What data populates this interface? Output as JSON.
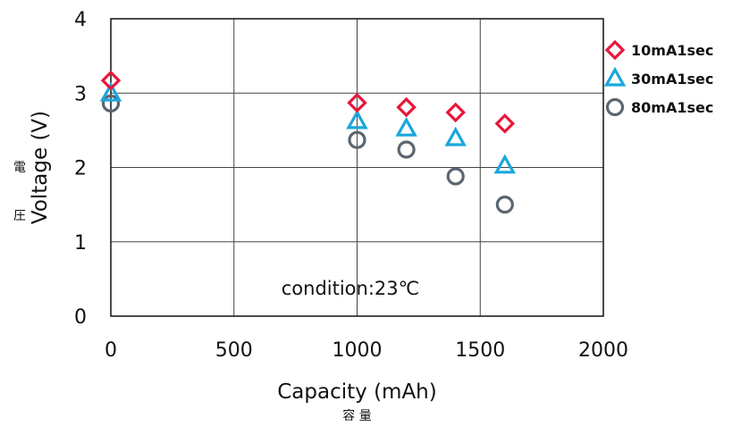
{
  "chart_data": {
    "type": "scatter",
    "title": "",
    "xlabel": "Capacity (mAh)",
    "xlabel_jp": "容 量",
    "ylabel": "Voltage (V)",
    "ylabel_jp": [
      "電",
      "圧"
    ],
    "xlim": [
      0,
      2000
    ],
    "ylim": [
      0,
      4
    ],
    "xticks": [
      "0",
      "500",
      "1000",
      "1500",
      "2000"
    ],
    "yticks": [
      "0",
      "1",
      "2",
      "3",
      "4"
    ],
    "grid": true,
    "legend_position": "right",
    "annotation": "condition:23℃",
    "series": [
      {
        "name": "10mA1sec",
        "marker": "diamond",
        "color": "#e8173c",
        "x": [
          0,
          1000,
          1200,
          1400,
          1600
        ],
        "y": [
          3.17,
          2.87,
          2.81,
          2.74,
          2.59
        ]
      },
      {
        "name": "30mA1sec",
        "marker": "triangle",
        "color": "#1aa7dc",
        "x": [
          0,
          1000,
          1200,
          1400,
          1600
        ],
        "y": [
          2.99,
          2.62,
          2.52,
          2.39,
          2.02
        ]
      },
      {
        "name": "80mA1sec",
        "marker": "circle",
        "color": "#5b6670",
        "x": [
          0,
          1000,
          1200,
          1400,
          1600
        ],
        "y": [
          2.86,
          2.37,
          2.24,
          1.88,
          1.5
        ]
      }
    ]
  }
}
